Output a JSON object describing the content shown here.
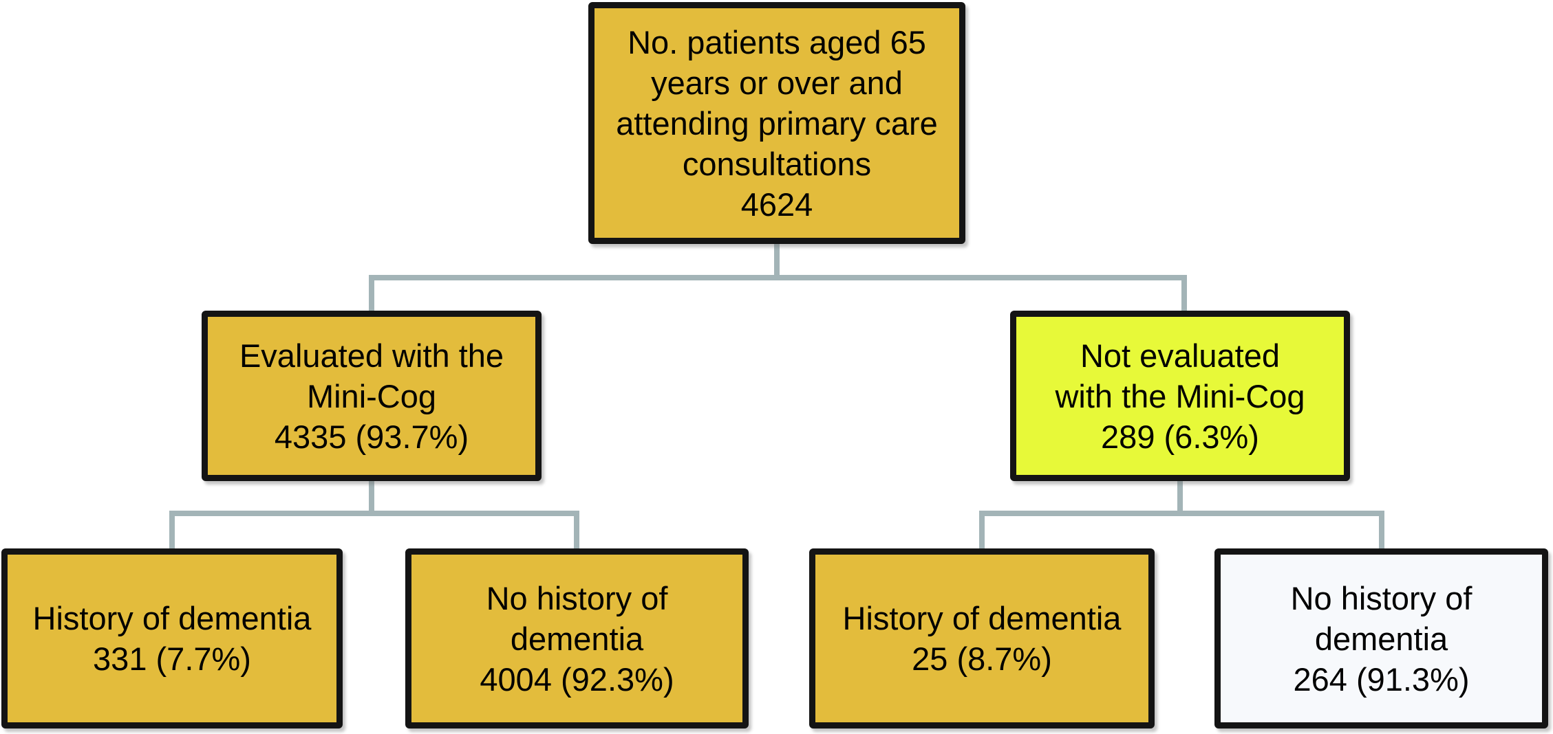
{
  "figure": {
    "type": "flowchart",
    "background": "#FFFFFF",
    "border_color": "#141414",
    "connector_color": "#A3B4B7",
    "colors": {
      "gold": "#E3BC3C",
      "chartreuse": "#E7F939",
      "white": "#F7F9FC"
    },
    "nodes": [
      {
        "id": "total-patients",
        "level": 1,
        "fill": "#E3BC3C",
        "lines": [
          "No. patients aged 65",
          "years or over and",
          "attending primary care",
          "consultations",
          "4624"
        ],
        "count": 4624
      },
      {
        "id": "evaluated-mini-cog",
        "level": 2,
        "fill": "#E3BC3C",
        "lines": [
          "Evaluated with the",
          "Mini-Cog",
          "4335 (93.7%)"
        ],
        "count": 4335,
        "percent": "93.7%"
      },
      {
        "id": "not-evaluated-mini-cog",
        "level": 2,
        "fill": "#E7F939",
        "lines": [
          "Not evaluated",
          "with the Mini-Cog",
          "289 (6.3%)"
        ],
        "count": 289,
        "percent": "6.3%"
      },
      {
        "id": "evaluated-history-dementia",
        "level": 3,
        "fill": "#E3BC3C",
        "lines": [
          "History of dementia",
          "331 (7.7%)"
        ],
        "count": 331,
        "percent": "7.7%"
      },
      {
        "id": "evaluated-no-history-dementia",
        "level": 3,
        "fill": "#E3BC3C",
        "lines": [
          "No history of",
          "dementia",
          "4004 (92.3%)"
        ],
        "count": 4004,
        "percent": "92.3%"
      },
      {
        "id": "not-evaluated-history-dementia",
        "level": 3,
        "fill": "#E3BC3C",
        "lines": [
          "History of dementia",
          "25 (8.7%)"
        ],
        "count": 25,
        "percent": "8.7%"
      },
      {
        "id": "not-evaluated-no-history-dementia",
        "level": 3,
        "fill": "#F7F9FC",
        "lines": [
          "No history of",
          "dementia",
          "264 (91.3%)"
        ],
        "count": 264,
        "percent": "91.3%"
      }
    ],
    "edges": [
      {
        "from": "total-patients",
        "to": "evaluated-mini-cog"
      },
      {
        "from": "total-patients",
        "to": "not-evaluated-mini-cog"
      },
      {
        "from": "evaluated-mini-cog",
        "to": "evaluated-history-dementia"
      },
      {
        "from": "evaluated-mini-cog",
        "to": "evaluated-no-history-dementia"
      },
      {
        "from": "not-evaluated-mini-cog",
        "to": "not-evaluated-history-dementia"
      },
      {
        "from": "not-evaluated-mini-cog",
        "to": "not-evaluated-no-history-dementia"
      }
    ]
  }
}
